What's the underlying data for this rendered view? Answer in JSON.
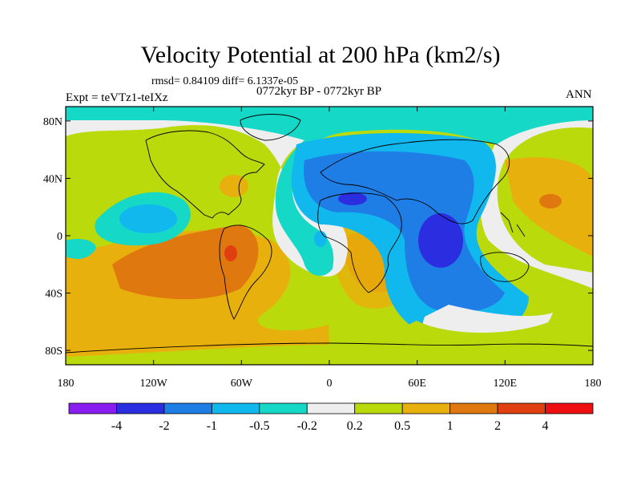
{
  "header": {
    "title": "Velocity Potential at 200 hPa (km2/s)",
    "stats": "rmsd= 0.84109 diff= 6.1337e-05",
    "expt": "Expt = teVTz1-teIXz",
    "period": "0772kyr BP - 0772kyr BP",
    "season": "ANN"
  },
  "axes": {
    "lat_labels": [
      "80N",
      "40N",
      "0",
      "40S",
      "80S"
    ],
    "lat_values": [
      80,
      40,
      0,
      -40,
      -80
    ],
    "lon_labels": [
      "180",
      "120W",
      "60W",
      "0",
      "60E",
      "120E",
      "180"
    ],
    "lon_values": [
      -180,
      -120,
      -60,
      0,
      60,
      120,
      180
    ]
  },
  "colorbar": {
    "labels": [
      "-4",
      "-2",
      "-1",
      "-0.5",
      "-0.2",
      "0.2",
      "0.5",
      "1",
      "2",
      "4"
    ],
    "colors": [
      "#8a1ef0",
      "#2a2ee0",
      "#1f7ee6",
      "#10b8ee",
      "#16d8c6",
      "#eeeeee",
      "#bada0c",
      "#e8b00c",
      "#e07810",
      "#e04010",
      "#ee1010"
    ]
  },
  "palette": {
    "lvl_m4": "#2a2ee0",
    "lvl_m2": "#1f7ee6",
    "lvl_m1": "#10b8ee",
    "lvl_m05": "#16d8c6",
    "lvl_0": "#eeeeee",
    "lvl_p02": "#bada0c",
    "lvl_p05": "#e8b00c",
    "lvl_p1": "#e07810"
  }
}
